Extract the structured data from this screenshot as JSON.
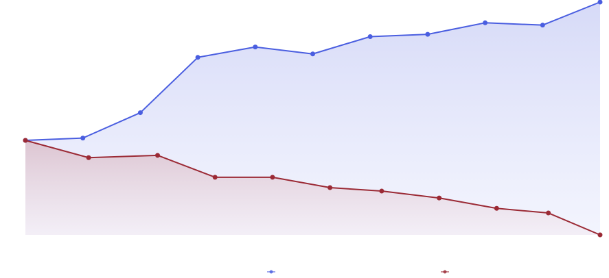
{
  "chart_data": {
    "type": "area",
    "x": [
      0,
      1,
      2,
      3,
      4,
      5,
      6,
      7,
      8,
      9,
      10
    ],
    "series": [
      {
        "x": [
          0,
          1,
          2,
          3,
          4,
          5,
          6,
          7,
          8,
          9,
          10
        ],
        "values": [
          60,
          61,
          72,
          96,
          100.5,
          97.5,
          105,
          106,
          111,
          110,
          120
        ],
        "color": "#4a5ee0",
        "fill_top": "#d4d8f7",
        "fill_bottom": "#eef0fd"
      },
      {
        "x": [
          0,
          1.1,
          2.3,
          3.3,
          4.3,
          5.3,
          6.2,
          7.2,
          8.2,
          9.1,
          10
        ],
        "values": [
          60,
          52.5,
          53.5,
          44,
          44,
          39.5,
          38,
          35,
          30.5,
          28.5,
          19
        ],
        "color": "#9b2a35",
        "fill_top": "#dcc3cf",
        "fill_bottom": "#f3ecf4"
      }
    ],
    "ylim": [
      19,
      120
    ],
    "xlim": [
      0,
      10
    ],
    "grid": false,
    "legend": "bottom-center"
  }
}
